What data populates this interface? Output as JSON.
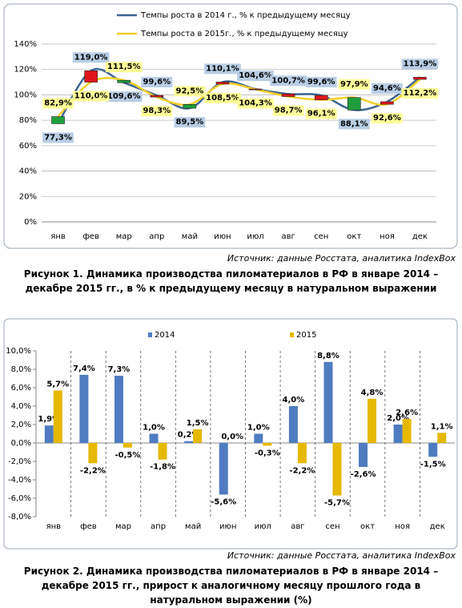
{
  "chart_data": [
    {
      "type": "line",
      "categories": [
        "янв",
        "фев",
        "мар",
        "апр",
        "май",
        "июн",
        "июл",
        "авг",
        "сен",
        "окт",
        "ноя",
        "дек"
      ],
      "series": [
        {
          "name": "Темпы роста в 2014 г., % к предыдущему месяцу",
          "color": "#3d6491",
          "values": [
            77.3,
            119.0,
            109.6,
            99.6,
            89.5,
            110.1,
            104.6,
            100.7,
            99.6,
            88.1,
            94.6,
            113.9
          ],
          "value_labels": [
            "77,3%",
            "119,0%",
            "109,6%",
            "99,6%",
            "89,5%",
            "110,1%",
            "104,6%",
            "100,7%",
            "99,6%",
            "88,1%",
            "94,6%",
            "113,9%"
          ]
        },
        {
          "name": "Темпы роста в 2015г., % к предыдущему месяцу",
          "color": "#f2cf2a",
          "values": [
            82.9,
            110.0,
            111.5,
            98.3,
            92.5,
            108.5,
            104.3,
            98.7,
            96.1,
            97.9,
            92.6,
            112.2
          ],
          "value_labels": [
            "82,9%",
            "110,0%",
            "111,5%",
            "98,3%",
            "92,5%",
            "108,5%",
            "104,3%",
            "98,7%",
            "96,1%",
            "97,9%",
            "92,6%",
            "112,2%"
          ]
        }
      ],
      "ylim": [
        0,
        140
      ],
      "yticks": [
        {
          "value": 0,
          "label": "0%"
        },
        {
          "value": 20,
          "label": "20%"
        },
        {
          "value": 40,
          "label": "40%"
        },
        {
          "value": 60,
          "label": "60%"
        },
        {
          "value": 80,
          "label": "80%"
        },
        {
          "value": 100,
          "label": "100%"
        },
        {
          "value": 120,
          "label": "120%"
        },
        {
          "value": 140,
          "label": "140%"
        }
      ],
      "grid": true,
      "up_down_bars": {
        "up_color": "#1f9e3e",
        "down_color": "#e0161a"
      },
      "source": "Источник: данные Росстата, аналитика IndexBox",
      "caption": "Рисунок 1. Динамика производства пиломатериалов в РФ в январе 2014 – декабре 2015 гг., в % к предыдущему месяцу в натуральном выражении"
    },
    {
      "type": "bar",
      "categories": [
        "янв",
        "фев",
        "мар",
        "апр",
        "май",
        "июн",
        "июл",
        "авг",
        "сен",
        "окт",
        "ноя",
        "дек"
      ],
      "series": [
        {
          "name": "2014",
          "color": "#4f7cc0",
          "values": [
            1.9,
            7.4,
            7.3,
            1.0,
            0.2,
            -5.6,
            1.0,
            4.0,
            8.8,
            -2.6,
            2.0,
            -1.5
          ],
          "value_labels": [
            "1,9%",
            "7,4%",
            "7,3%",
            "1,0%",
            "0,2%",
            "-5,6%",
            "1,0%",
            "4,0%",
            "8,8%",
            "-2,6%",
            "2,0%",
            "-1,5%"
          ]
        },
        {
          "name": "2015",
          "color": "#e6b800",
          "values": [
            5.7,
            -2.2,
            -0.5,
            -1.8,
            1.5,
            0.0,
            -0.3,
            -2.2,
            -5.7,
            4.8,
            2.6,
            1.1
          ],
          "value_labels": [
            "5,7%",
            "-2,2%",
            "-0,5%",
            "-1,8%",
            "1,5%",
            "0,0%",
            "-0,3%",
            "-2,2%",
            "-5,7%",
            "4,8%",
            "2,6%",
            "1,1%"
          ]
        }
      ],
      "ylim": [
        -8,
        10
      ],
      "yticks": [
        {
          "value": -8,
          "label": "-8,0%"
        },
        {
          "value": -6,
          "label": "-6,0%"
        },
        {
          "value": -4,
          "label": "-4,0%"
        },
        {
          "value": -2,
          "label": "-2,0%"
        },
        {
          "value": 0,
          "label": "0,0%"
        },
        {
          "value": 2,
          "label": "2,0%"
        },
        {
          "value": 4,
          "label": "4,0%"
        },
        {
          "value": 6,
          "label": "6,0%"
        },
        {
          "value": 8,
          "label": "8,0%"
        },
        {
          "value": 10,
          "label": "10,0%"
        }
      ],
      "grid": false,
      "source": "Источник: данные Росстата, аналитика IndexBox",
      "caption": "Рисунок 2. Динамика производства пиломатериалов в РФ в январе 2014 – декабре 2015 гг., прирост к аналогичному месяцу прошлого года в натуральном выражении (%)"
    }
  ]
}
